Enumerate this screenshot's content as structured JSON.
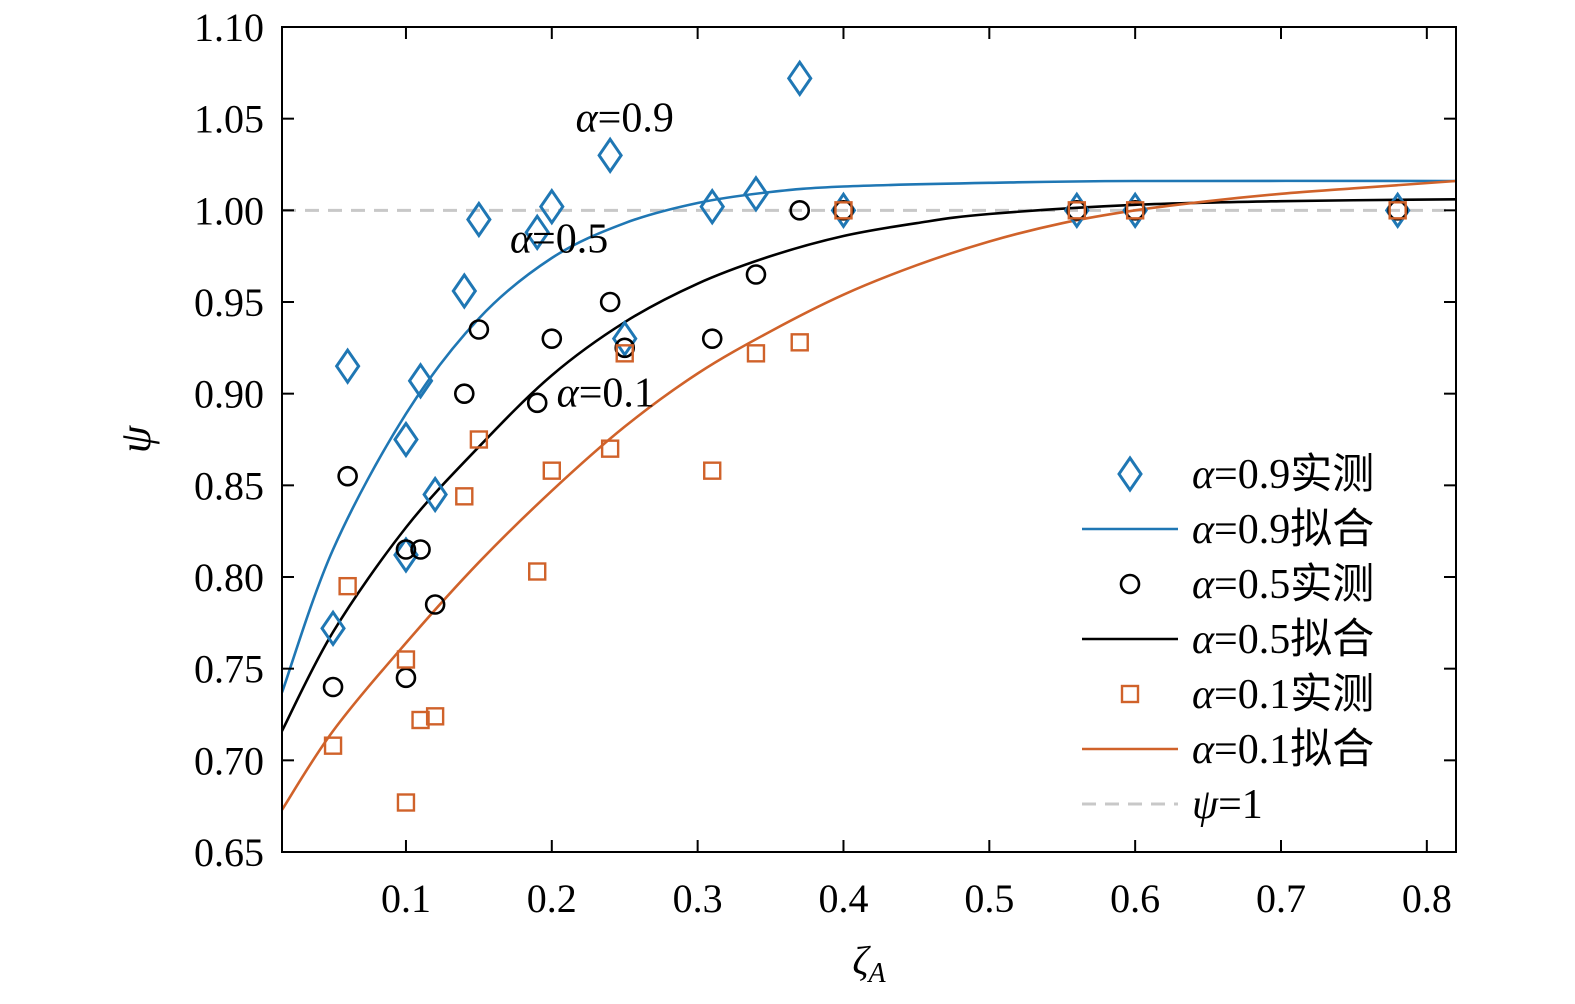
{
  "chart_data": {
    "type": "scatter",
    "xlabel": "ζA",
    "xlabel_main": "ζ",
    "xlabel_sub": "A",
    "ylabel": "ψ",
    "xlim": [
      0.015,
      0.82
    ],
    "ylim": [
      0.65,
      1.1
    ],
    "x_ticks": [
      0.1,
      0.2,
      0.3,
      0.4,
      0.5,
      0.6,
      0.7,
      0.8
    ],
    "x_tick_labels": [
      "0.1",
      "0.2",
      "0.3",
      "0.4",
      "0.5",
      "0.6",
      "0.7",
      "0.8"
    ],
    "y_ticks": [
      0.65,
      0.7,
      0.75,
      0.8,
      0.85,
      0.9,
      0.95,
      1.0,
      1.05,
      1.1
    ],
    "y_tick_labels": [
      "0.65",
      "0.70",
      "0.75",
      "0.80",
      "0.85",
      "0.90",
      "0.95",
      "1.00",
      "1.05",
      "1.10"
    ],
    "grid": false,
    "legend_position": "bottom-right",
    "annotations": [
      {
        "prefix": "α",
        "text": "=0.9",
        "x": 0.25,
        "y": 1.043
      },
      {
        "prefix": "α",
        "text": "=0.5",
        "x": 0.205,
        "y": 0.977
      },
      {
        "prefix": "α",
        "text": "=0.1",
        "x": 0.237,
        "y": 0.893
      }
    ],
    "series": [
      {
        "name": "α=0.9实测",
        "legend_prefix": "α",
        "legend_text": "=0.9实测",
        "kind": "points",
        "marker": "diamond",
        "color": "#1f77b4",
        "points": [
          [
            0.05,
            0.772
          ],
          [
            0.06,
            0.915
          ],
          [
            0.1,
            0.875
          ],
          [
            0.1,
            0.812
          ],
          [
            0.11,
            0.907
          ],
          [
            0.12,
            0.845
          ],
          [
            0.14,
            0.956
          ],
          [
            0.15,
            0.995
          ],
          [
            0.19,
            0.988
          ],
          [
            0.2,
            1.002
          ],
          [
            0.24,
            1.03
          ],
          [
            0.25,
            0.93
          ],
          [
            0.31,
            1.002
          ],
          [
            0.34,
            1.009
          ],
          [
            0.37,
            1.072
          ],
          [
            0.4,
            1.0
          ],
          [
            0.56,
            1.0
          ],
          [
            0.6,
            1.0
          ],
          [
            0.78,
            1.0
          ]
        ]
      },
      {
        "name": "α=0.9拟合",
        "legend_prefix": "α",
        "legend_text": "=0.9拟合",
        "kind": "line",
        "color": "#1f77b4",
        "points": [
          [
            0.015,
            0.737
          ],
          [
            0.05,
            0.815
          ],
          [
            0.1,
            0.889
          ],
          [
            0.15,
            0.941
          ],
          [
            0.2,
            0.974
          ],
          [
            0.25,
            0.993
          ],
          [
            0.3,
            1.004
          ],
          [
            0.35,
            1.01
          ],
          [
            0.4,
            1.013
          ],
          [
            0.5,
            1.015
          ],
          [
            0.6,
            1.016
          ],
          [
            0.82,
            1.016
          ]
        ]
      },
      {
        "name": "α=0.5实测",
        "legend_prefix": "α",
        "legend_text": "=0.5实测",
        "kind": "points",
        "marker": "circle",
        "color": "#000000",
        "points": [
          [
            0.05,
            0.74
          ],
          [
            0.06,
            0.855
          ],
          [
            0.1,
            0.815
          ],
          [
            0.1,
            0.745
          ],
          [
            0.11,
            0.815
          ],
          [
            0.12,
            0.785
          ],
          [
            0.14,
            0.9
          ],
          [
            0.15,
            0.935
          ],
          [
            0.19,
            0.895
          ],
          [
            0.2,
            0.93
          ],
          [
            0.24,
            0.95
          ],
          [
            0.25,
            0.925
          ],
          [
            0.31,
            0.93
          ],
          [
            0.34,
            0.965
          ],
          [
            0.37,
            1.0
          ],
          [
            0.4,
            1.0
          ],
          [
            0.56,
            1.0
          ],
          [
            0.6,
            1.0
          ],
          [
            0.78,
            1.0
          ]
        ]
      },
      {
        "name": "α=0.5拟合",
        "legend_prefix": "α",
        "legend_text": "=0.5拟合",
        "kind": "line",
        "color": "#000000",
        "points": [
          [
            0.015,
            0.716
          ],
          [
            0.05,
            0.77
          ],
          [
            0.1,
            0.827
          ],
          [
            0.15,
            0.871
          ],
          [
            0.2,
            0.91
          ],
          [
            0.25,
            0.939
          ],
          [
            0.3,
            0.96
          ],
          [
            0.35,
            0.975
          ],
          [
            0.4,
            0.986
          ],
          [
            0.45,
            0.993
          ],
          [
            0.5,
            0.998
          ],
          [
            0.6,
            1.003
          ],
          [
            0.7,
            1.005
          ],
          [
            0.82,
            1.006
          ]
        ]
      },
      {
        "name": "α=0.1实测",
        "legend_prefix": "α",
        "legend_text": "=0.1实测",
        "kind": "points",
        "marker": "square",
        "color": "#d0622a",
        "points": [
          [
            0.05,
            0.708
          ],
          [
            0.06,
            0.795
          ],
          [
            0.1,
            0.755
          ],
          [
            0.1,
            0.677
          ],
          [
            0.11,
            0.722
          ],
          [
            0.12,
            0.724
          ],
          [
            0.14,
            0.844
          ],
          [
            0.15,
            0.875
          ],
          [
            0.19,
            0.803
          ],
          [
            0.2,
            0.858
          ],
          [
            0.24,
            0.87
          ],
          [
            0.25,
            0.922
          ],
          [
            0.31,
            0.858
          ],
          [
            0.34,
            0.922
          ],
          [
            0.37,
            0.928
          ],
          [
            0.4,
            1.0
          ],
          [
            0.56,
            1.0
          ],
          [
            0.6,
            1.0
          ],
          [
            0.78,
            1.0
          ]
        ]
      },
      {
        "name": "α=0.1拟合",
        "legend_prefix": "α",
        "legend_text": "=0.1拟合",
        "kind": "line",
        "color": "#d0622a",
        "points": [
          [
            0.015,
            0.673
          ],
          [
            0.05,
            0.716
          ],
          [
            0.1,
            0.764
          ],
          [
            0.15,
            0.808
          ],
          [
            0.2,
            0.847
          ],
          [
            0.25,
            0.882
          ],
          [
            0.3,
            0.911
          ],
          [
            0.35,
            0.934
          ],
          [
            0.4,
            0.954
          ],
          [
            0.45,
            0.97
          ],
          [
            0.5,
            0.983
          ],
          [
            0.55,
            0.993
          ],
          [
            0.6,
            1.0
          ],
          [
            0.65,
            1.005
          ],
          [
            0.7,
            1.009
          ],
          [
            0.75,
            1.012
          ],
          [
            0.82,
            1.016
          ]
        ]
      },
      {
        "name": "ψ=1",
        "legend_prefix": "ψ",
        "legend_text": "=1",
        "kind": "dashed",
        "color": "#c8c8c8",
        "points": [
          [
            0.015,
            1.0
          ],
          [
            0.82,
            1.0
          ]
        ]
      }
    ]
  }
}
